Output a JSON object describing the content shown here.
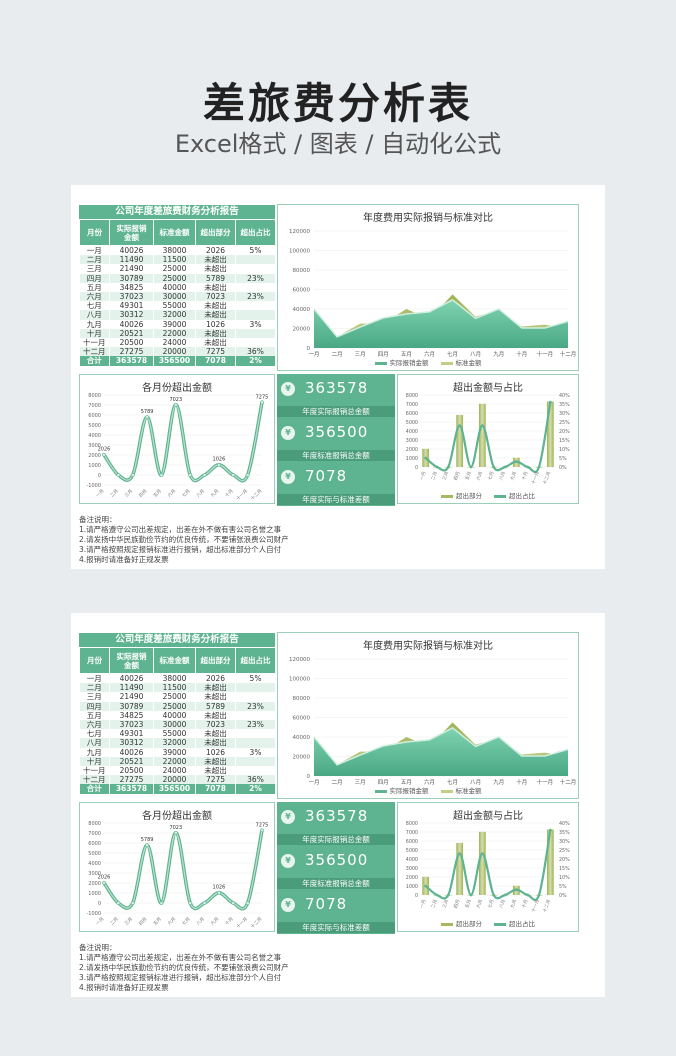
{
  "title": "差旅费分析表",
  "subtitle": "Excel格式 / 图表 / 自动化公式",
  "report": {
    "heading": "公司年度差旅费财务分析报告",
    "columns": [
      "月份",
      "实际报销\n金额",
      "标准金额",
      "超出部分",
      "超出占比"
    ],
    "rows": [
      [
        "一月",
        "40026",
        "38000",
        "2026",
        "5%"
      ],
      [
        "二月",
        "11490",
        "11500",
        "未超出",
        ""
      ],
      [
        "三月",
        "21490",
        "25000",
        "未超出",
        ""
      ],
      [
        "四月",
        "30789",
        "25000",
        "5789",
        "23%"
      ],
      [
        "五月",
        "34825",
        "40000",
        "未超出",
        ""
      ],
      [
        "六月",
        "37023",
        "30000",
        "7023",
        "23%"
      ],
      [
        "七月",
        "49301",
        "55000",
        "未超出",
        ""
      ],
      [
        "八月",
        "30312",
        "32000",
        "未超出",
        ""
      ],
      [
        "九月",
        "40026",
        "39000",
        "1026",
        "3%"
      ],
      [
        "十月",
        "20521",
        "22000",
        "未超出",
        ""
      ],
      [
        "十一月",
        "20500",
        "24000",
        "未超出",
        ""
      ],
      [
        "十二月",
        "27275",
        "20000",
        "7275",
        "36%"
      ]
    ],
    "total": [
      "合计",
      "363578",
      "356500",
      "7078",
      "2%"
    ]
  },
  "chart1_title": "年度费用实际报销与标准对比",
  "chart1_legend": [
    "实际报销金额",
    "标准金额"
  ],
  "chart2_title": "各月份超出金额",
  "chart4_title": "超出金额与占比",
  "chart4_legend": [
    "超出部分",
    "超出占比"
  ],
  "kpis": [
    {
      "value": "363578",
      "label": "年度实际报销总金额",
      "icon": "¥"
    },
    {
      "value": "356500",
      "label": "年度标准报销总金额",
      "icon": "¥"
    },
    {
      "value": "7078",
      "label": "年度实际与标准差额",
      "icon": "¥"
    }
  ],
  "notes": [
    "备注说明：",
    "1.请严格遵守公司出差规定，出差在外不做有害公司名誉之事",
    "2.请发扬中华民族勤俭节约的优良传统，不要铺张浪费公司财产",
    "3.请严格按照规定报销标准进行报销，超出标准部分个人自付",
    "4.报销时请准备好正规发票"
  ],
  "colors": {
    "accent": "#5eb391",
    "dark_accent": "#4a9c7b",
    "olive": "#a8b860",
    "light_row": "#e3f3ec"
  },
  "chart_data": [
    {
      "type": "area",
      "title": "年度费用实际报销与标准对比",
      "categories": [
        "一月",
        "二月",
        "三月",
        "四月",
        "五月",
        "六月",
        "七月",
        "八月",
        "九月",
        "十月",
        "十一月",
        "十二月"
      ],
      "series": [
        {
          "name": "实际报销金额",
          "values": [
            40026,
            11490,
            21490,
            30789,
            34825,
            37023,
            49301,
            30312,
            40026,
            20521,
            20500,
            27275
          ]
        },
        {
          "name": "标准金额",
          "values": [
            38000,
            11500,
            25000,
            25000,
            40000,
            30000,
            55000,
            32000,
            39000,
            22000,
            24000,
            20000
          ]
        }
      ],
      "ylim": [
        0,
        120000
      ],
      "yticks": [
        0,
        20000,
        40000,
        60000,
        80000,
        100000,
        120000
      ]
    },
    {
      "type": "line",
      "title": "各月份超出金额",
      "categories": [
        "一月",
        "二月",
        "三月",
        "四月",
        "五月",
        "六月",
        "七月",
        "八月",
        "九月",
        "十月",
        "十一月",
        "十二月"
      ],
      "values": [
        2026,
        0,
        0,
        5789,
        0,
        7023,
        0,
        0,
        1026,
        0,
        0,
        7275
      ],
      "data_labels": [
        "2026",
        "",
        "",
        "5789",
        "",
        "7023",
        "",
        "",
        "1026",
        "",
        "",
        "7275"
      ],
      "ylim": [
        -1000,
        8000
      ],
      "yticks": [
        -1000,
        0,
        1000,
        2000,
        3000,
        4000,
        5000,
        6000,
        7000,
        8000
      ]
    },
    {
      "type": "bar",
      "title": "超出金额与占比",
      "categories": [
        "一月",
        "二月",
        "三月",
        "四月",
        "五月",
        "六月",
        "七月",
        "八月",
        "九月",
        "十月",
        "十一月",
        "十二月"
      ],
      "series": [
        {
          "name": "超出部分",
          "values": [
            2026,
            0,
            0,
            5789,
            0,
            7023,
            0,
            0,
            1026,
            0,
            0,
            7275
          ]
        },
        {
          "name": "超出占比",
          "values": [
            5,
            0,
            0,
            23,
            0,
            23,
            0,
            0,
            3,
            0,
            0,
            36
          ]
        }
      ],
      "ylim": [
        0,
        8000
      ],
      "yticks": [
        0,
        1000,
        2000,
        3000,
        4000,
        5000,
        6000,
        7000,
        8000
      ],
      "y2lim": [
        0,
        40
      ],
      "y2ticks": [
        "0%",
        "5%",
        "10%",
        "15%",
        "20%",
        "25%",
        "30%",
        "35%",
        "40%"
      ]
    }
  ]
}
